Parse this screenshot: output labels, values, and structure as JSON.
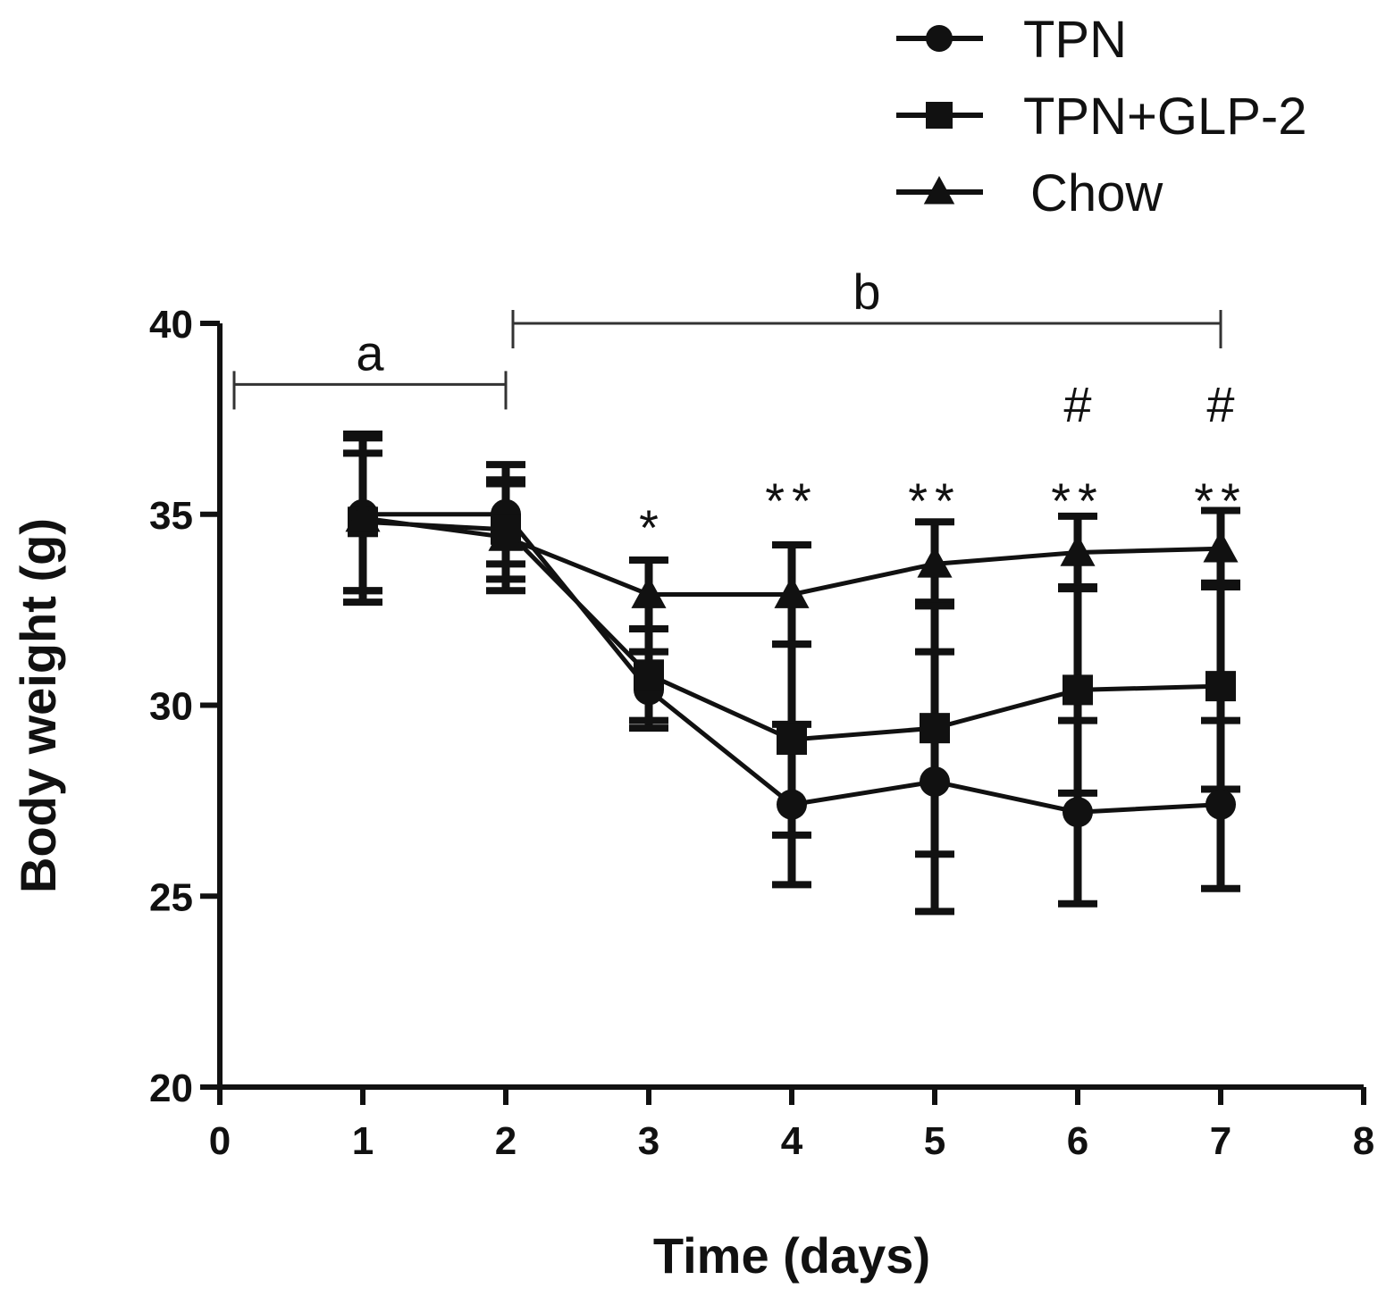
{
  "chart_data": {
    "type": "line",
    "title": "",
    "xlabel": "Time (days)",
    "ylabel": "Body weight (g)",
    "xlim": [
      0,
      8
    ],
    "ylim": [
      20,
      40
    ],
    "xticks": [
      "0",
      "1",
      "2",
      "3",
      "4",
      "5",
      "6",
      "7",
      "8"
    ],
    "yticks": [
      "20",
      "25",
      "30",
      "35",
      "40"
    ],
    "grid": false,
    "legend_position": "top-right",
    "x": [
      1,
      2,
      3,
      4,
      5,
      6,
      7
    ],
    "series": [
      {
        "name": "TPN",
        "marker": "circle",
        "values": [
          35.0,
          35.0,
          30.4,
          27.4,
          28.0,
          27.2,
          27.4
        ],
        "error": [
          2.0,
          1.3,
          1.0,
          2.1,
          3.4,
          2.4,
          2.2
        ]
      },
      {
        "name": "TPN+GLP-2",
        "marker": "square",
        "values": [
          34.8,
          34.6,
          30.8,
          29.1,
          29.4,
          30.4,
          30.5
        ],
        "error": [
          1.8,
          1.3,
          1.2,
          2.5,
          3.3,
          2.7,
          2.7
        ]
      },
      {
        "name": "Chow",
        "marker": "triangle",
        "values": [
          34.9,
          34.4,
          32.9,
          32.9,
          33.7,
          34.0,
          34.1
        ],
        "error": [
          2.2,
          1.4,
          0.9,
          1.3,
          1.1,
          0.95,
          1.0
        ]
      }
    ],
    "brackets": [
      {
        "label": "a",
        "from": 0.1,
        "to": 2.0,
        "y": 38.4
      },
      {
        "label": "b",
        "from": 2.05,
        "to": 7.0,
        "y": 40.0
      }
    ],
    "annotations": [
      {
        "x": 3,
        "lines": [
          "*"
        ]
      },
      {
        "x": 4,
        "lines": [
          "**"
        ]
      },
      {
        "x": 5,
        "lines": [
          "**"
        ]
      },
      {
        "x": 6,
        "lines": [
          "#",
          "**"
        ]
      },
      {
        "x": 7,
        "lines": [
          "#",
          "**"
        ]
      }
    ]
  }
}
